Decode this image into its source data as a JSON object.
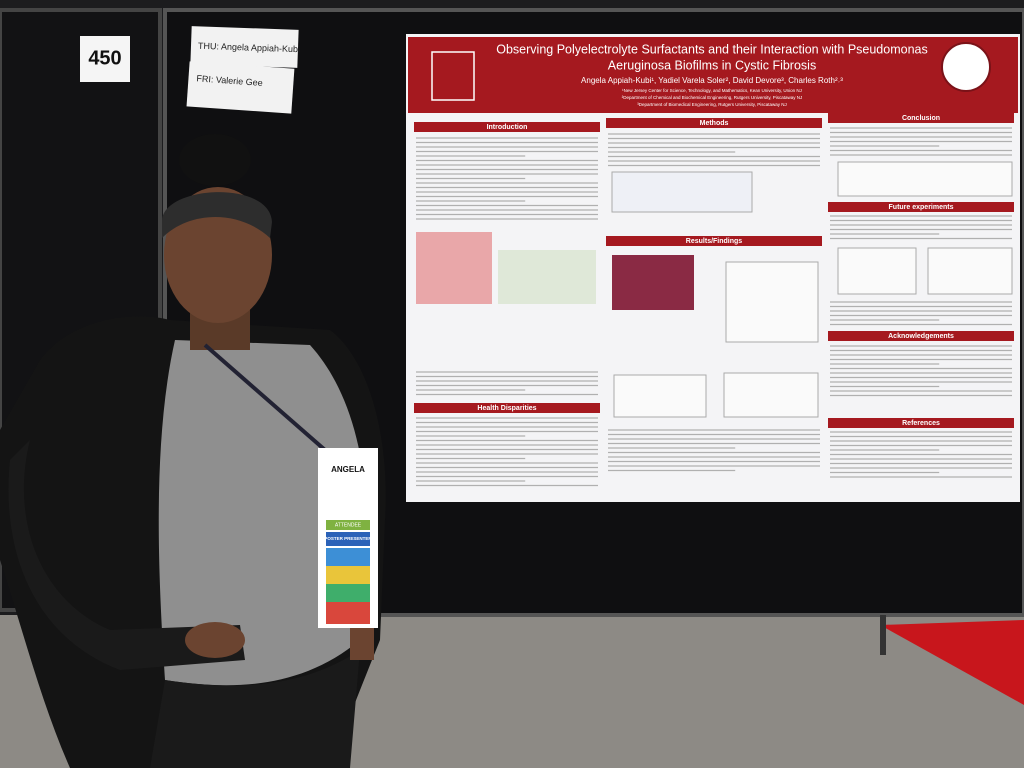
{
  "booth": {
    "number": "450",
    "labels": [
      "THU: Angela Appiah-Kubi",
      "FRI: Valerie Gee"
    ]
  },
  "poster": {
    "title_line1": "Observing Polyelectrolyte Surfactants and their Interaction with Pseudomonas",
    "title_line2": "Aeruginosa Biofilms in Cystic Fibrosis",
    "authors": "Angela Appiah-Kubi¹, Yadiel Varela Soler², David Devore³, Charles Roth²˒³",
    "affiliations": [
      "¹New Jersey Center for Science, Technology, and Mathematics, Kean University, Union NJ",
      "²Department of Chemical and Biochemical Engineering, Rutgers University, Piscataway NJ",
      "³Department of Biomedical Engineering, Rutgers University, Piscataway NJ"
    ],
    "sections": [
      "Introduction",
      "Methods",
      "Conclusion",
      "Future experiments",
      "Results/Findings",
      "Health Disparities",
      "Acknowledgements",
      "References"
    ]
  },
  "badge": {
    "name": "ANGELA",
    "role": "ATTENDEE",
    "type": "POSTER PRESENTER"
  }
}
